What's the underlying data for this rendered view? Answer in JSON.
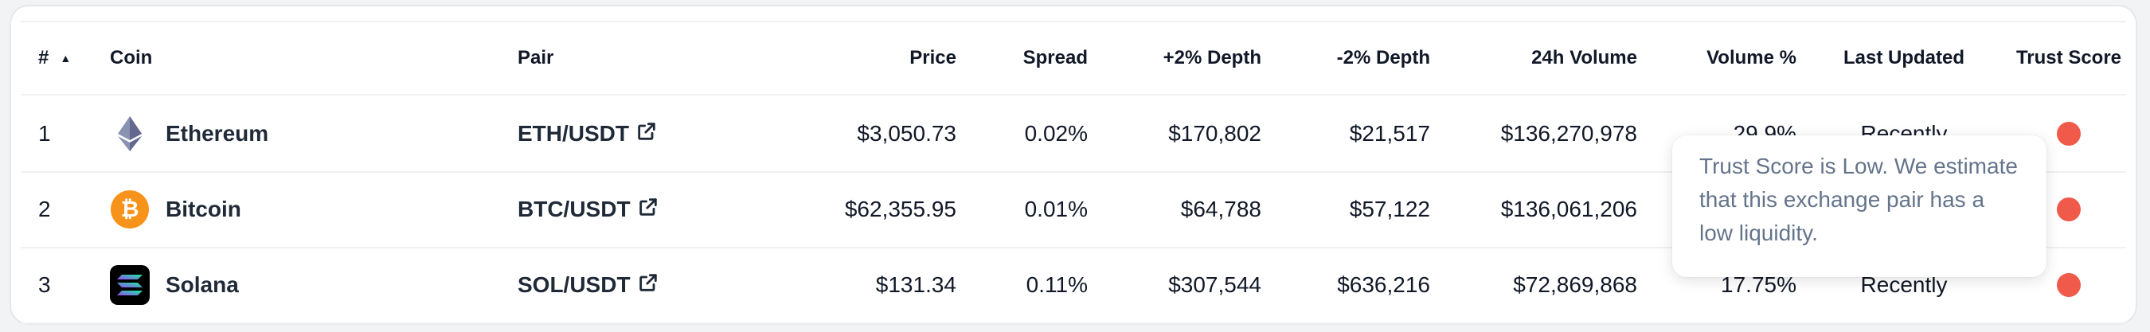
{
  "columns": {
    "rank": "#",
    "coin": "Coin",
    "pair": "Pair",
    "price": "Price",
    "spread": "Spread",
    "depth_plus": "+2% Depth",
    "depth_minus": "-2% Depth",
    "volume_24h": "24h Volume",
    "volume_pct": "Volume %",
    "last_updated": "Last Updated",
    "trust_score": "Trust Score"
  },
  "sort_indicator_icon": "caret-up-icon",
  "rows": [
    {
      "rank": "1",
      "coin": "Ethereum",
      "icon": "ethereum-icon",
      "pair": "ETH/USDT",
      "price": "$3,050.73",
      "spread": "0.02%",
      "depth_plus": "$170,802",
      "depth_minus": "$21,517",
      "volume_24h": "$136,270,978",
      "volume_pct": "29.9%",
      "last_updated": "Recently",
      "trust_color": "#ef5a4a"
    },
    {
      "rank": "2",
      "coin": "Bitcoin",
      "icon": "bitcoin-icon",
      "pair": "BTC/USDT",
      "price": "$62,355.95",
      "spread": "0.01%",
      "depth_plus": "$64,788",
      "depth_minus": "$57,122",
      "volume_24h": "$136,061,206",
      "volume_pct": "",
      "last_updated": "",
      "trust_color": "#ef5a4a"
    },
    {
      "rank": "3",
      "coin": "Solana",
      "icon": "solana-icon",
      "pair": "SOL/USDT",
      "price": "$131.34",
      "spread": "0.11%",
      "depth_plus": "$307,544",
      "depth_minus": "$636,216",
      "volume_24h": "$72,869,868",
      "volume_pct": "17.75%",
      "last_updated": "Recently",
      "trust_color": "#ef5a4a"
    }
  ],
  "tooltip": {
    "text": "Trust Score is Low. We estimate that this exchange pair has a low liquidity."
  },
  "colors": {
    "bitcoin": "#f7931a",
    "trust_low": "#ef5a4a",
    "tooltip_text": "#64748b"
  }
}
